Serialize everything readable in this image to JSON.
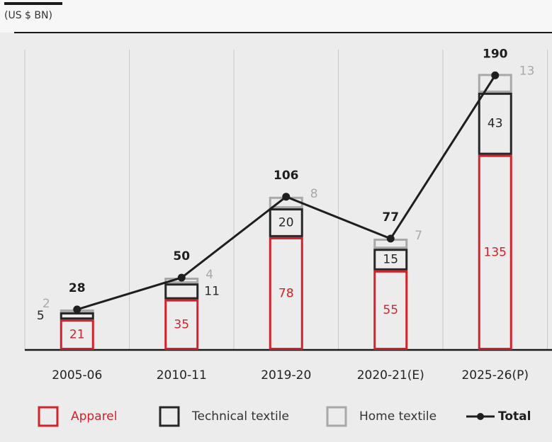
{
  "chart_data": {
    "type": "stacked_bar_line",
    "subtitle": "(US $ BN)",
    "categories": [
      "2005-06",
      "2010-11",
      "2019-20",
      "2020-21(E)",
      "2025-26(P)"
    ],
    "series": [
      {
        "name": "Apparel",
        "color": "#d2222c",
        "values": [
          21,
          35,
          78,
          55,
          135
        ]
      },
      {
        "name": "Technical textile",
        "color": "#262626",
        "values": [
          5,
          11,
          20,
          15,
          43
        ]
      },
      {
        "name": "Home textile",
        "color": "#a8a8a8",
        "values": [
          2,
          4,
          8,
          7,
          13
        ]
      },
      {
        "name": "Total",
        "color": "#1e1e1e",
        "type": "line",
        "values": [
          28,
          50,
          106,
          77,
          190
        ]
      }
    ],
    "grid": true
  }
}
